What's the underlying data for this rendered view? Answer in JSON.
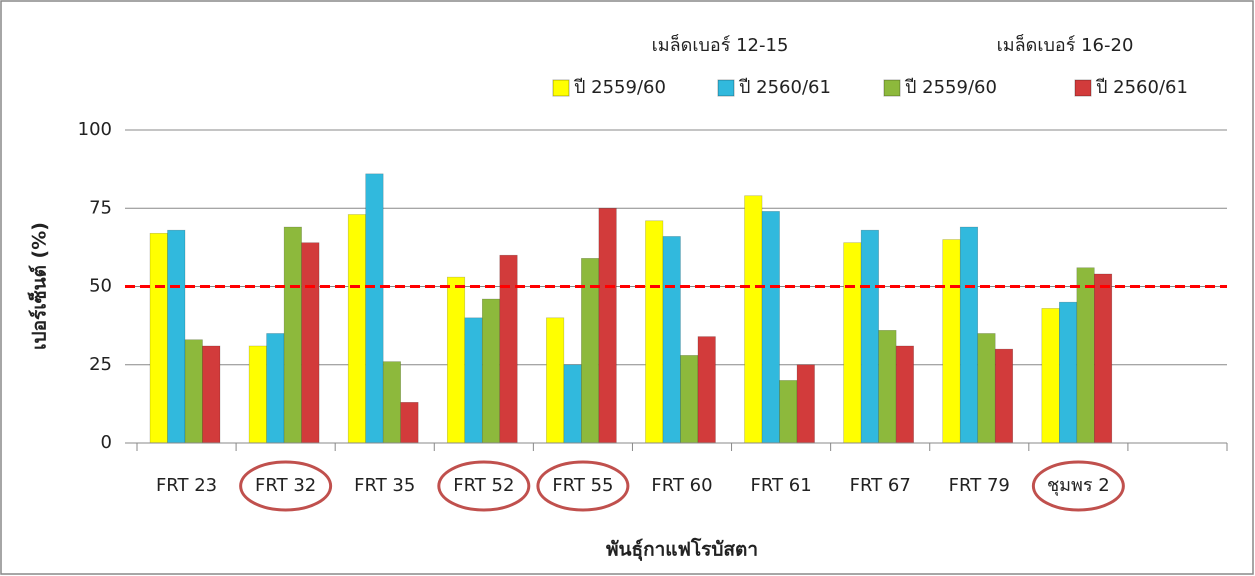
{
  "chart_data": {
    "type": "bar",
    "x_label": "พันธุ์กาแฟโรบัสตา",
    "y_label": "เปอร์เซ็นต์ (%)",
    "categories": [
      "FRT 23",
      "FRT 32",
      "FRT 35",
      "FRT 52",
      "FRT 55",
      "FRT 60",
      "FRT 61",
      "FRT 67",
      "FRT 79",
      "ชุมพร 2",
      null
    ],
    "legend_groups": [
      "เมล็ดเบอร์ 12-15",
      "เมล็ดเบอร์ 16-20"
    ],
    "series": [
      {
        "name": "ปี 2559/60",
        "color": "#ffff00",
        "values": [
          67,
          31,
          73,
          53,
          40,
          71,
          79,
          64,
          65,
          43,
          null
        ]
      },
      {
        "name": "ปี 2560/61",
        "color": "#31b9dd",
        "values": [
          68,
          35,
          86,
          40,
          25,
          66,
          74,
          68,
          69,
          45,
          null
        ]
      },
      {
        "name": "ปี 2559/60",
        "color": "#8db93c",
        "values": [
          33,
          69,
          26,
          46,
          59,
          28,
          20,
          36,
          35,
          56,
          null
        ]
      },
      {
        "name": "ปี 2560/61",
        "color": "#d23b3b",
        "values": [
          31,
          64,
          13,
          60,
          75,
          34,
          25,
          31,
          30,
          54,
          null
        ]
      }
    ],
    "ylim": [
      0,
      100
    ],
    "yticks": [
      0,
      25,
      50,
      75,
      100
    ],
    "grid": true,
    "reference_line": {
      "value": 50,
      "color": "#ff0000"
    },
    "highlight": [
      1,
      3,
      4,
      9
    ]
  }
}
